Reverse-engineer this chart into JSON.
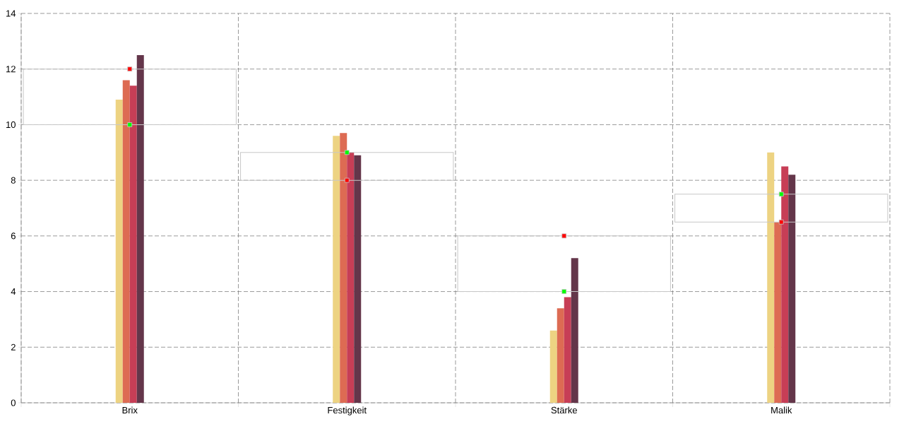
{
  "chart_data": {
    "type": "bar",
    "categories": [
      "Brix",
      "Festigkeit",
      "Stärke",
      "Malik"
    ],
    "series": [
      {
        "color": "#edd382",
        "values": [
          10.9,
          9.6,
          2.6,
          9.0
        ]
      },
      {
        "color": "#dd6b53",
        "values": [
          11.6,
          9.7,
          3.4,
          6.5
        ]
      },
      {
        "color": "#c73e56",
        "values": [
          11.4,
          9.0,
          3.8,
          8.5
        ]
      },
      {
        "color": "#64364a",
        "values": [
          12.5,
          8.9,
          5.2,
          8.2
        ]
      },
      {
        "type": "bar",
        "color": "#c8c8c8",
        "base": [
          10,
          8,
          4,
          6.5
        ],
        "values": [
          2,
          1,
          2,
          1
        ]
      },
      {
        "type": "scatter",
        "color": "#00ff00",
        "marker": "square",
        "values": [
          10,
          9,
          4,
          7.5
        ]
      },
      {
        "type": "scatter",
        "color": "#ff0000",
        "marker": "square",
        "values": [
          12,
          8,
          6,
          6.5
        ]
      }
    ],
    "ylim": [
      0,
      14
    ],
    "yticks": [
      0,
      2,
      4,
      6,
      8,
      10,
      12,
      14
    ],
    "grid": true
  }
}
